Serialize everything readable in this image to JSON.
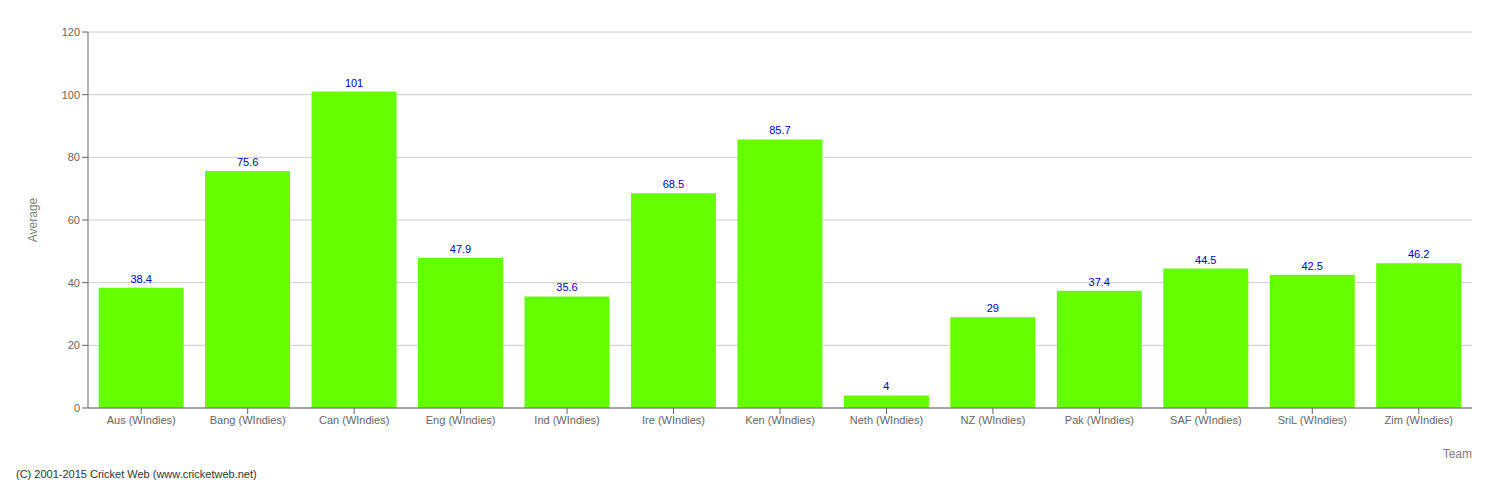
{
  "chart_data": {
    "type": "bar",
    "categories": [
      "Aus (WIndies)",
      "Bang (WIndies)",
      "Can (WIndies)",
      "Eng (WIndies)",
      "Ind (WIndies)",
      "Ire (WIndies)",
      "Ken (WIndies)",
      "Neth (WIndies)",
      "NZ (WIndies)",
      "Pak (WIndies)",
      "SAF (WIndies)",
      "SriL (WIndies)",
      "Zim (WIndies)"
    ],
    "values": [
      38.4,
      75.6,
      101.0,
      47.9,
      35.6,
      68.5,
      85.7,
      4.0,
      29.0,
      37.4,
      44.5,
      42.5,
      46.2
    ],
    "color": "#66ff00",
    "xlabel": "Team",
    "ylabel": "Average",
    "ylim": [
      0,
      120
    ],
    "yticks": [
      0,
      20,
      40,
      60,
      80,
      100,
      120
    ],
    "grid": true,
    "data_labels": true,
    "annotations": [
      "(C) 2001-2015 Cricket Web (www.cricketweb.net)"
    ]
  }
}
